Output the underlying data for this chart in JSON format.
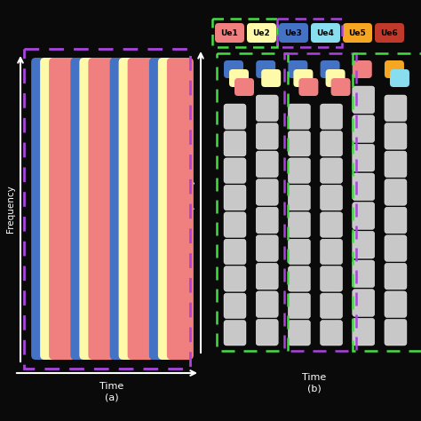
{
  "bg_color": "#0a0a0a",
  "ue_labels": [
    "Ue1",
    "Ue2",
    "Ue3",
    "Ue4",
    "Ue5",
    "Ue6"
  ],
  "ue_col": [
    "#f08080",
    "#fffaaa",
    "#4472c4",
    "#88ddee",
    "#f5a623",
    "#c0392b"
  ],
  "pink": "#f08080",
  "yellow": "#fffaaa",
  "blue": "#4472c4",
  "cyan": "#88ddee",
  "orange": "#f5a623",
  "dark_red": "#c0392b",
  "gray": "#c8c8c8",
  "green_dash": "#44dd44",
  "purple_dash": "#aa44dd"
}
